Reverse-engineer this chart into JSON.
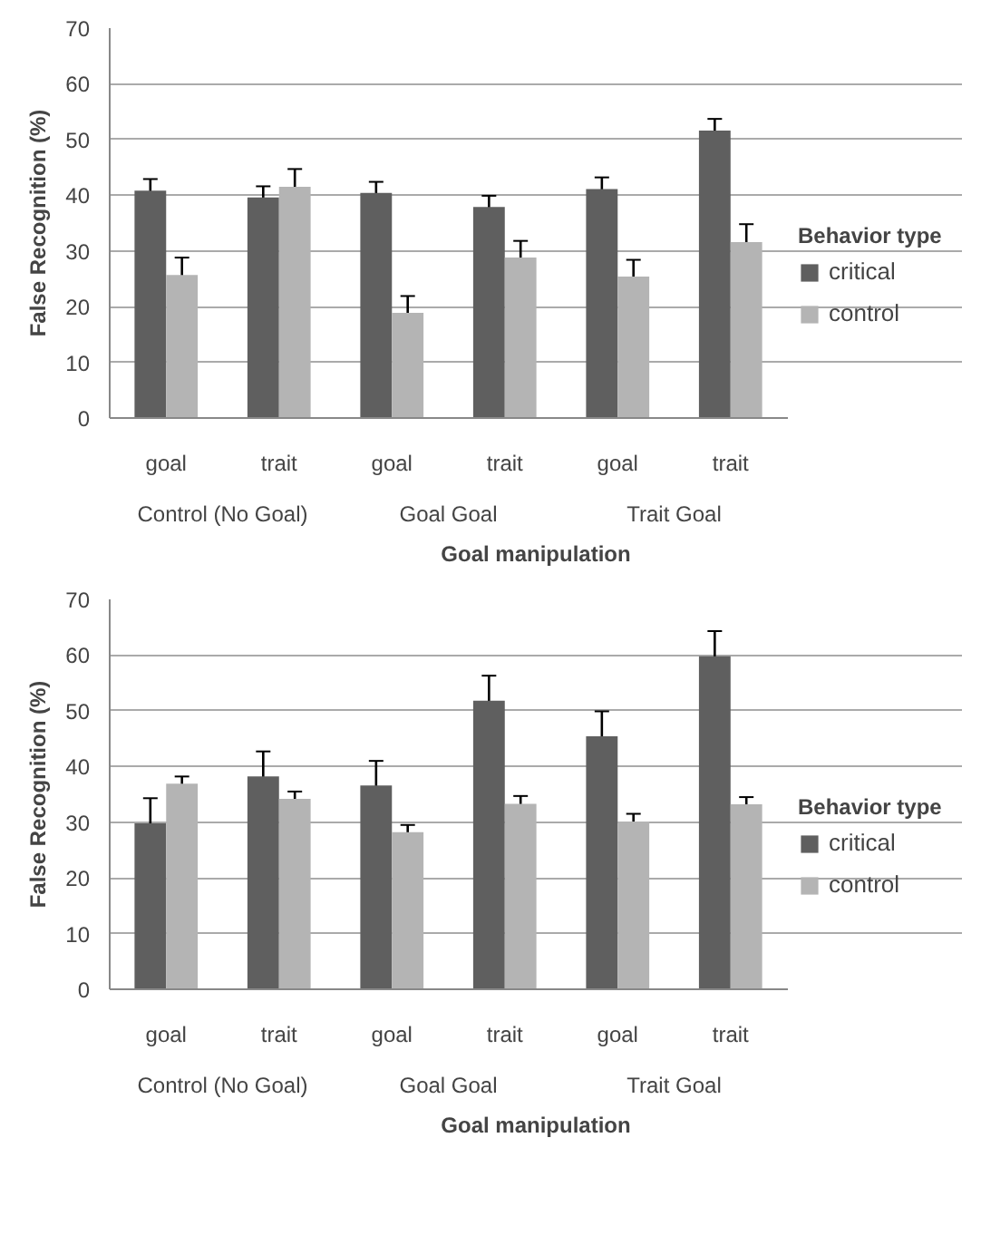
{
  "chart_data": [
    {
      "type": "bar",
      "xlabel": "Goal manipulation",
      "ylabel": "False Recognition (%)",
      "legend_title": "Behavior type",
      "categories": [
        "goal",
        "trait",
        "goal",
        "trait",
        "goal",
        "trait"
      ],
      "annotations": [
        "Control (No Goal)",
        "Goal Goal",
        "Trait Goal"
      ],
      "ylim": [
        0,
        70
      ],
      "yticks": [
        0,
        10,
        20,
        30,
        40,
        50,
        60,
        70
      ],
      "grid": "y",
      "legend": "right",
      "series": [
        {
          "name": "critical",
          "color": "#5f5f5f",
          "values": [
            40.8,
            39.6,
            40.4,
            37.9,
            41.1,
            51.6
          ],
          "errors": [
            2.1,
            2.0,
            2.0,
            2.0,
            2.1,
            2.1
          ]
        },
        {
          "name": "control",
          "color": "#b4b4b4",
          "values": [
            25.7,
            41.5,
            18.9,
            28.8,
            25.4,
            31.6
          ],
          "errors": [
            3.1,
            3.2,
            3.0,
            3.0,
            3.0,
            3.2
          ]
        }
      ]
    },
    {
      "type": "bar",
      "xlabel": "Goal manipulation",
      "ylabel": "False Recognition (%)",
      "legend_title": "Behavior type",
      "categories": [
        "goal",
        "trait",
        "goal",
        "trait",
        "goal",
        "trait"
      ],
      "annotations": [
        "Control (No Goal)",
        "Goal Goal",
        "Trait Goal"
      ],
      "ylim": [
        0,
        70
      ],
      "yticks": [
        0,
        10,
        20,
        30,
        40,
        50,
        60,
        70
      ],
      "grid": "y",
      "legend": "right",
      "series": [
        {
          "name": "critical",
          "color": "#5f5f5f",
          "values": [
            29.8,
            38.2,
            36.6,
            51.8,
            45.4,
            59.8
          ],
          "errors": [
            4.5,
            4.5,
            4.4,
            4.5,
            4.5,
            4.5
          ]
        },
        {
          "name": "control",
          "color": "#b4b4b4",
          "values": [
            36.9,
            34.2,
            28.2,
            33.3,
            30.1,
            33.2
          ],
          "errors": [
            1.3,
            1.3,
            1.3,
            1.4,
            1.4,
            1.3
          ]
        }
      ]
    }
  ]
}
